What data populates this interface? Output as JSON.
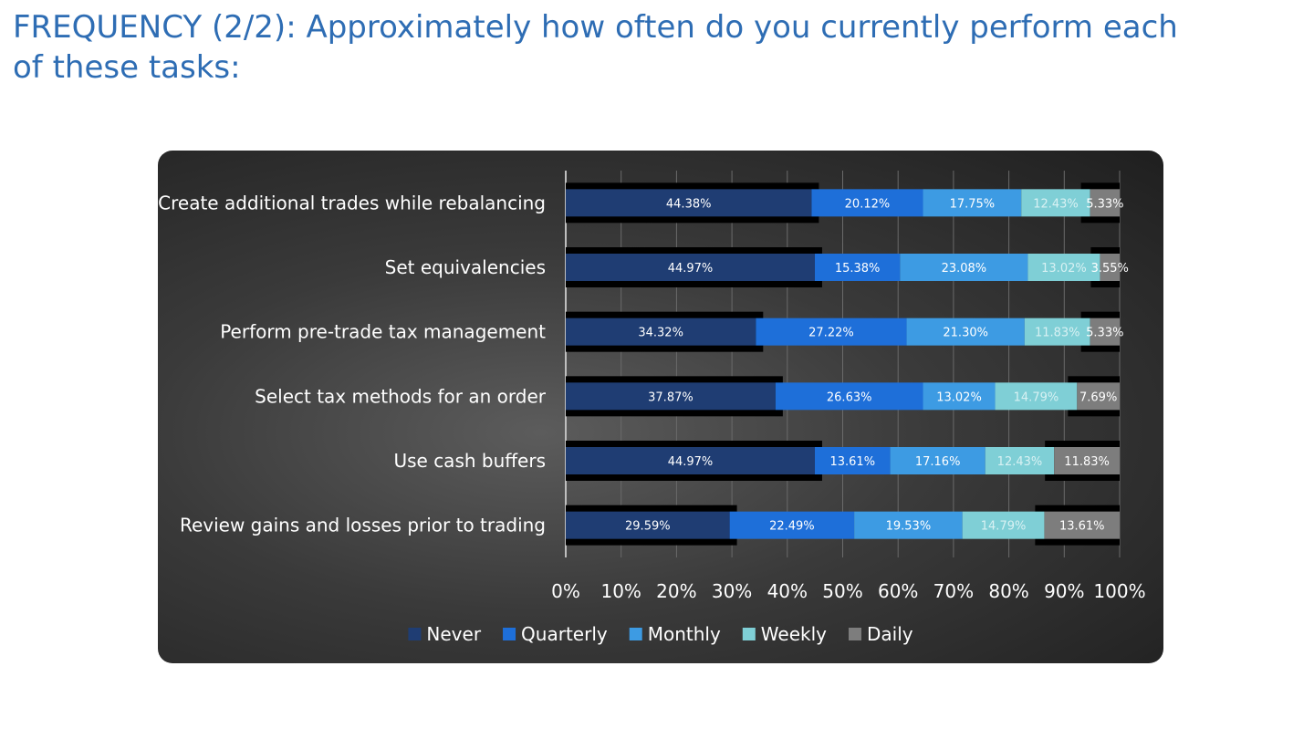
{
  "page": {
    "title": "FREQUENCY (2/2): Approximately how often do you currently perform each of these tasks:"
  },
  "chart_data": {
    "type": "bar",
    "orientation": "horizontal",
    "stacked": true,
    "categories": [
      "Create additional trades while rebalancing",
      "Set equivalencies",
      "Perform pre-trade tax management",
      "Select tax methods for an order",
      "Use cash buffers",
      "Review gains and losses prior to trading"
    ],
    "series": [
      {
        "name": "Never",
        "color": "#1f3d73",
        "values": [
          44.38,
          44.97,
          34.32,
          37.87,
          44.97,
          29.59
        ],
        "labels": [
          "44.38%",
          "44.97%",
          "34.32%",
          "37.87%",
          "44.97%",
          "29.59%"
        ]
      },
      {
        "name": "Quarterly",
        "color": "#1e6fd9",
        "values": [
          20.12,
          15.38,
          27.22,
          26.63,
          13.61,
          22.49
        ],
        "labels": [
          "20.12%",
          "15.38%",
          "27.22%",
          "26.63%",
          "13.61%",
          "22.49%"
        ]
      },
      {
        "name": "Monthly",
        "color": "#3d9be3",
        "values": [
          17.75,
          23.08,
          21.3,
          13.02,
          17.16,
          19.53
        ],
        "labels": [
          "17.75%",
          "23.08%",
          "21.30%",
          "13.02%",
          "17.16%",
          "19.53%"
        ]
      },
      {
        "name": "Weekly",
        "color": "#7fcfd6",
        "values": [
          12.43,
          13.02,
          11.83,
          14.79,
          12.43,
          14.79
        ],
        "labels": [
          "12.43%",
          "13.02%",
          "11.83%",
          "14.79%",
          "12.43%",
          "14.79%"
        ]
      },
      {
        "name": "Daily",
        "color": "#7d7d7d",
        "values": [
          5.33,
          3.55,
          5.33,
          7.69,
          11.83,
          13.61
        ],
        "labels": [
          "5.33%",
          "3.55%",
          "5.33%",
          "7.69%",
          "11.83%",
          "13.61%"
        ]
      }
    ],
    "x_ticks": [
      "0%",
      "10%",
      "20%",
      "30%",
      "40%",
      "50%",
      "60%",
      "70%",
      "80%",
      "90%",
      "100%"
    ],
    "xlim": [
      0,
      100
    ],
    "grid": true,
    "legend": "bottom"
  }
}
